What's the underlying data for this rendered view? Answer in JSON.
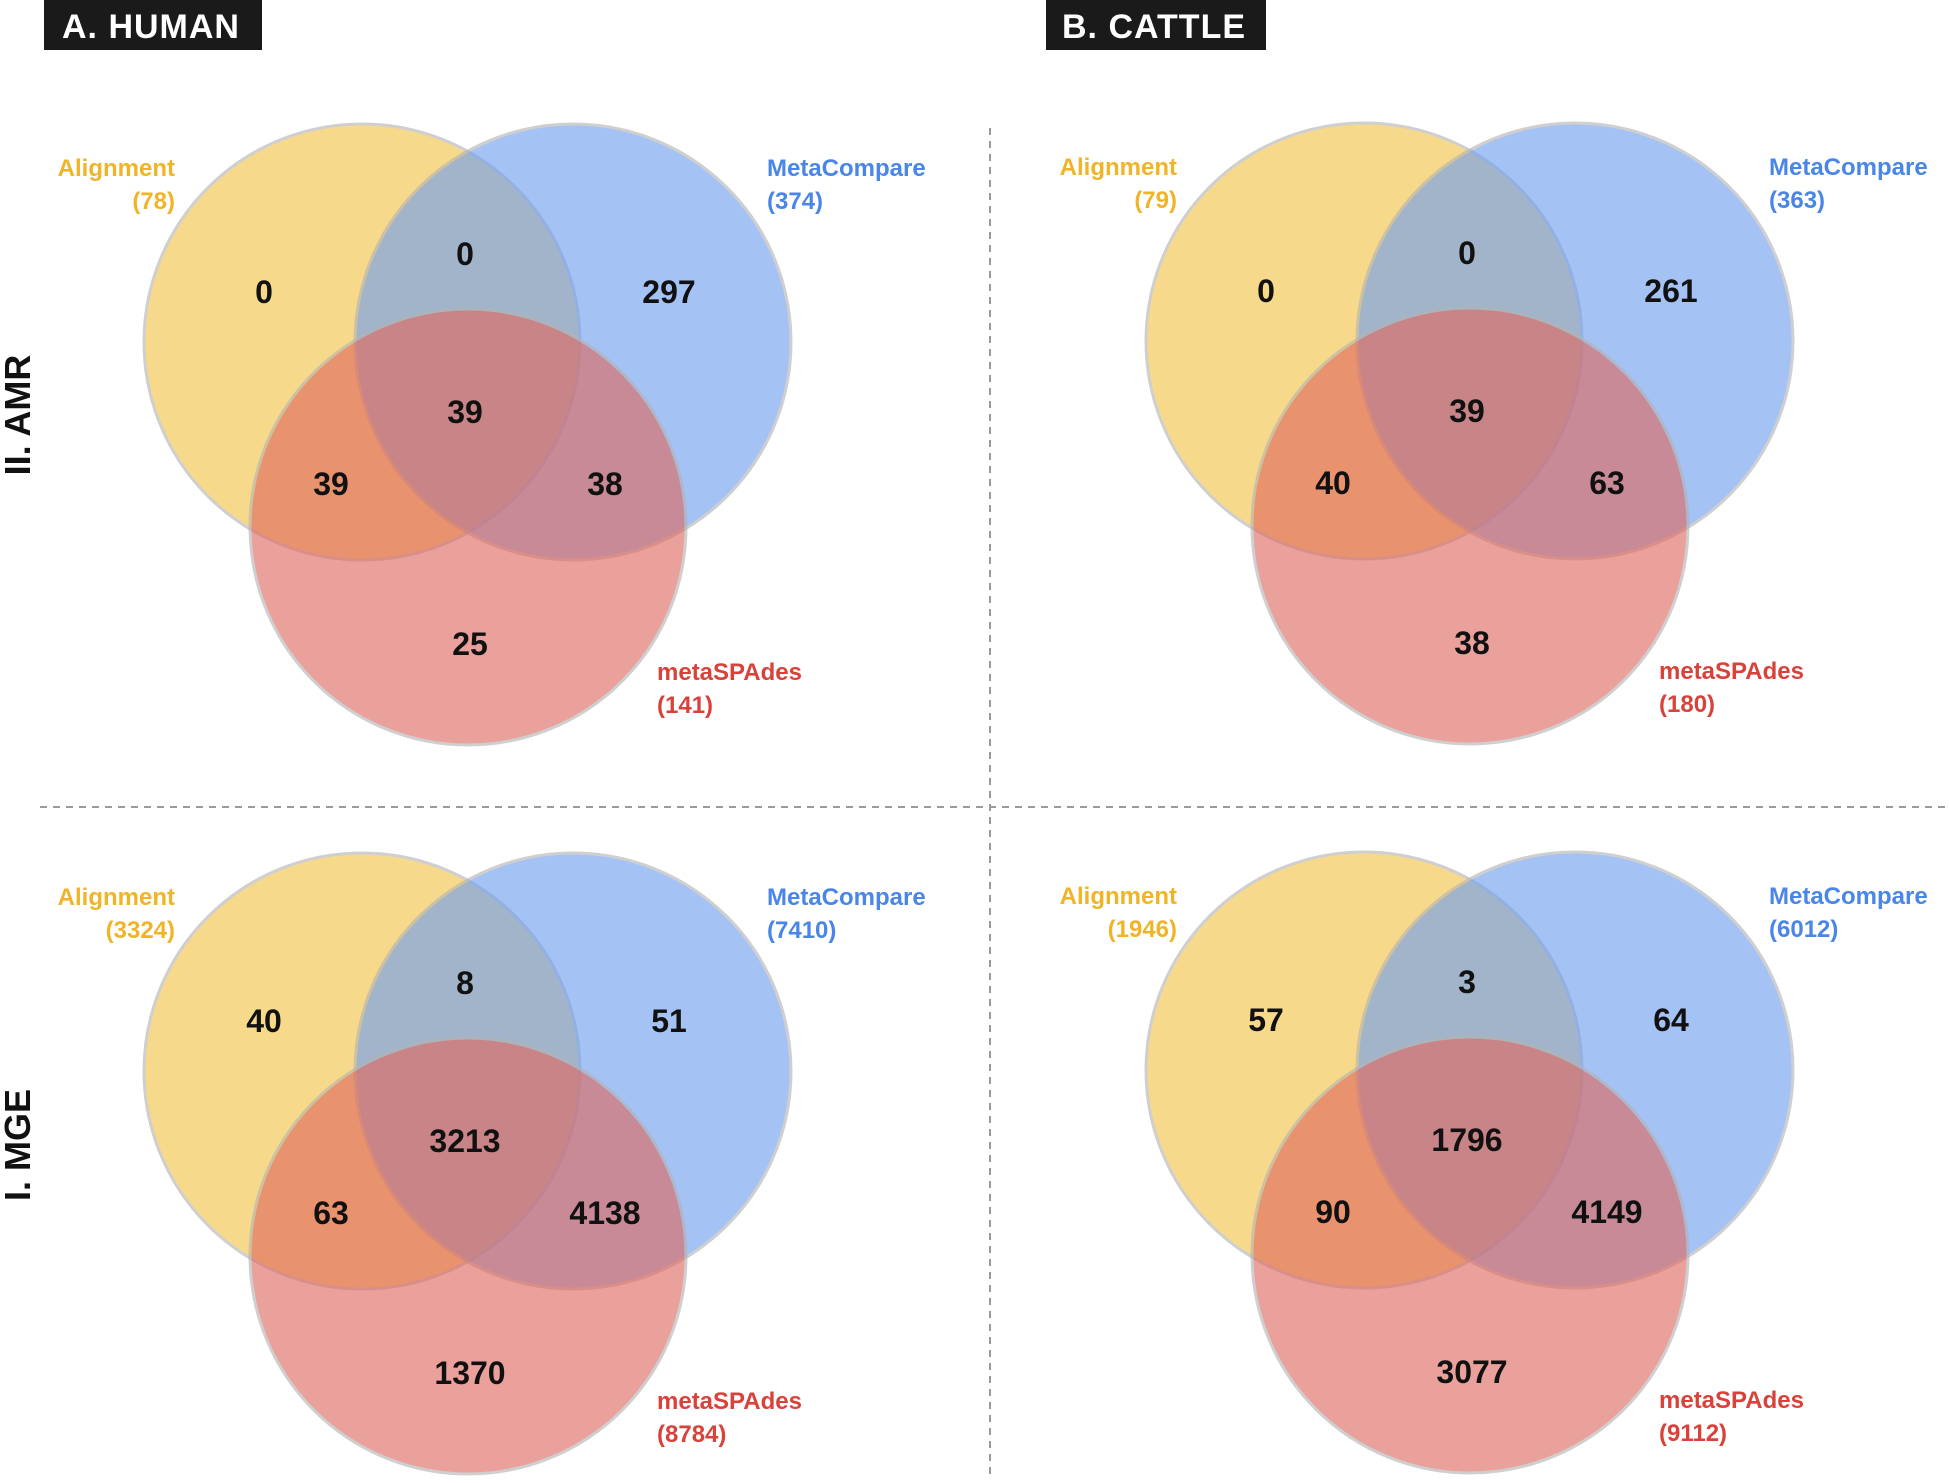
{
  "colors": {
    "alignment": "#f2c244",
    "metacompare": "#6f9ef0",
    "metaspades": "#e0685e",
    "alignment_text": "#f0b429",
    "metacompare_text": "#4a86e8",
    "metaspades_text": "#d9423a",
    "header_bg": "#1a1a1a"
  },
  "columns": [
    {
      "label": "A. HUMAN"
    },
    {
      "label": "B. CATTLE"
    }
  ],
  "rows": [
    {
      "label": "II. AMR"
    },
    {
      "label": "I. MGE"
    }
  ],
  "chart_data": [
    {
      "type": "venn",
      "column": "A. HUMAN",
      "row": "II. AMR",
      "sets": [
        {
          "name": "Alignment",
          "total_label": "(78)",
          "total": 78
        },
        {
          "name": "MetaCompare",
          "total_label": "(374)",
          "total": 374
        },
        {
          "name": "metaSPAdes",
          "total_label": "(141)",
          "total": 141
        }
      ],
      "regions": {
        "alignment_only": "0",
        "alignment_metacompare": "0",
        "metacompare_only": "297",
        "all_three": "39",
        "alignment_metaspades": "39",
        "metacompare_metaspades": "38",
        "metaspades_only": "25"
      }
    },
    {
      "type": "venn",
      "column": "B. CATTLE",
      "row": "II. AMR",
      "sets": [
        {
          "name": "Alignment",
          "total_label": "(79)",
          "total": 79
        },
        {
          "name": "MetaCompare",
          "total_label": "(363)",
          "total": 363
        },
        {
          "name": "metaSPAdes",
          "total_label": "(180)",
          "total": 180
        }
      ],
      "regions": {
        "alignment_only": "0",
        "alignment_metacompare": "0",
        "metacompare_only": "261",
        "all_three": "39",
        "alignment_metaspades": "40",
        "metacompare_metaspades": "63",
        "metaspades_only": "38"
      }
    },
    {
      "type": "venn",
      "column": "A. HUMAN",
      "row": "I. MGE",
      "sets": [
        {
          "name": "Alignment",
          "total_label": "(3324)",
          "total": 3324
        },
        {
          "name": "MetaCompare",
          "total_label": "(7410)",
          "total": 7410
        },
        {
          "name": "metaSPAdes",
          "total_label": "(8784)",
          "total": 8784
        }
      ],
      "regions": {
        "alignment_only": "40",
        "alignment_metacompare": "8",
        "metacompare_only": "51",
        "all_three": "3213",
        "alignment_metaspades": "63",
        "metacompare_metaspades": "4138",
        "metaspades_only": "1370"
      }
    },
    {
      "type": "venn",
      "column": "B. CATTLE",
      "row": "I. MGE",
      "sets": [
        {
          "name": "Alignment",
          "total_label": "(1946)",
          "total": 1946
        },
        {
          "name": "MetaCompare",
          "total_label": "(6012)",
          "total": 6012
        },
        {
          "name": "metaSPAdes",
          "total_label": "(9112)",
          "total": 9112
        }
      ],
      "regions": {
        "alignment_only": "57",
        "alignment_metacompare": "3",
        "metacompare_only": "64",
        "all_three": "1796",
        "alignment_metaspades": "90",
        "metacompare_metaspades": "4149",
        "metaspades_only": "3077"
      }
    }
  ]
}
